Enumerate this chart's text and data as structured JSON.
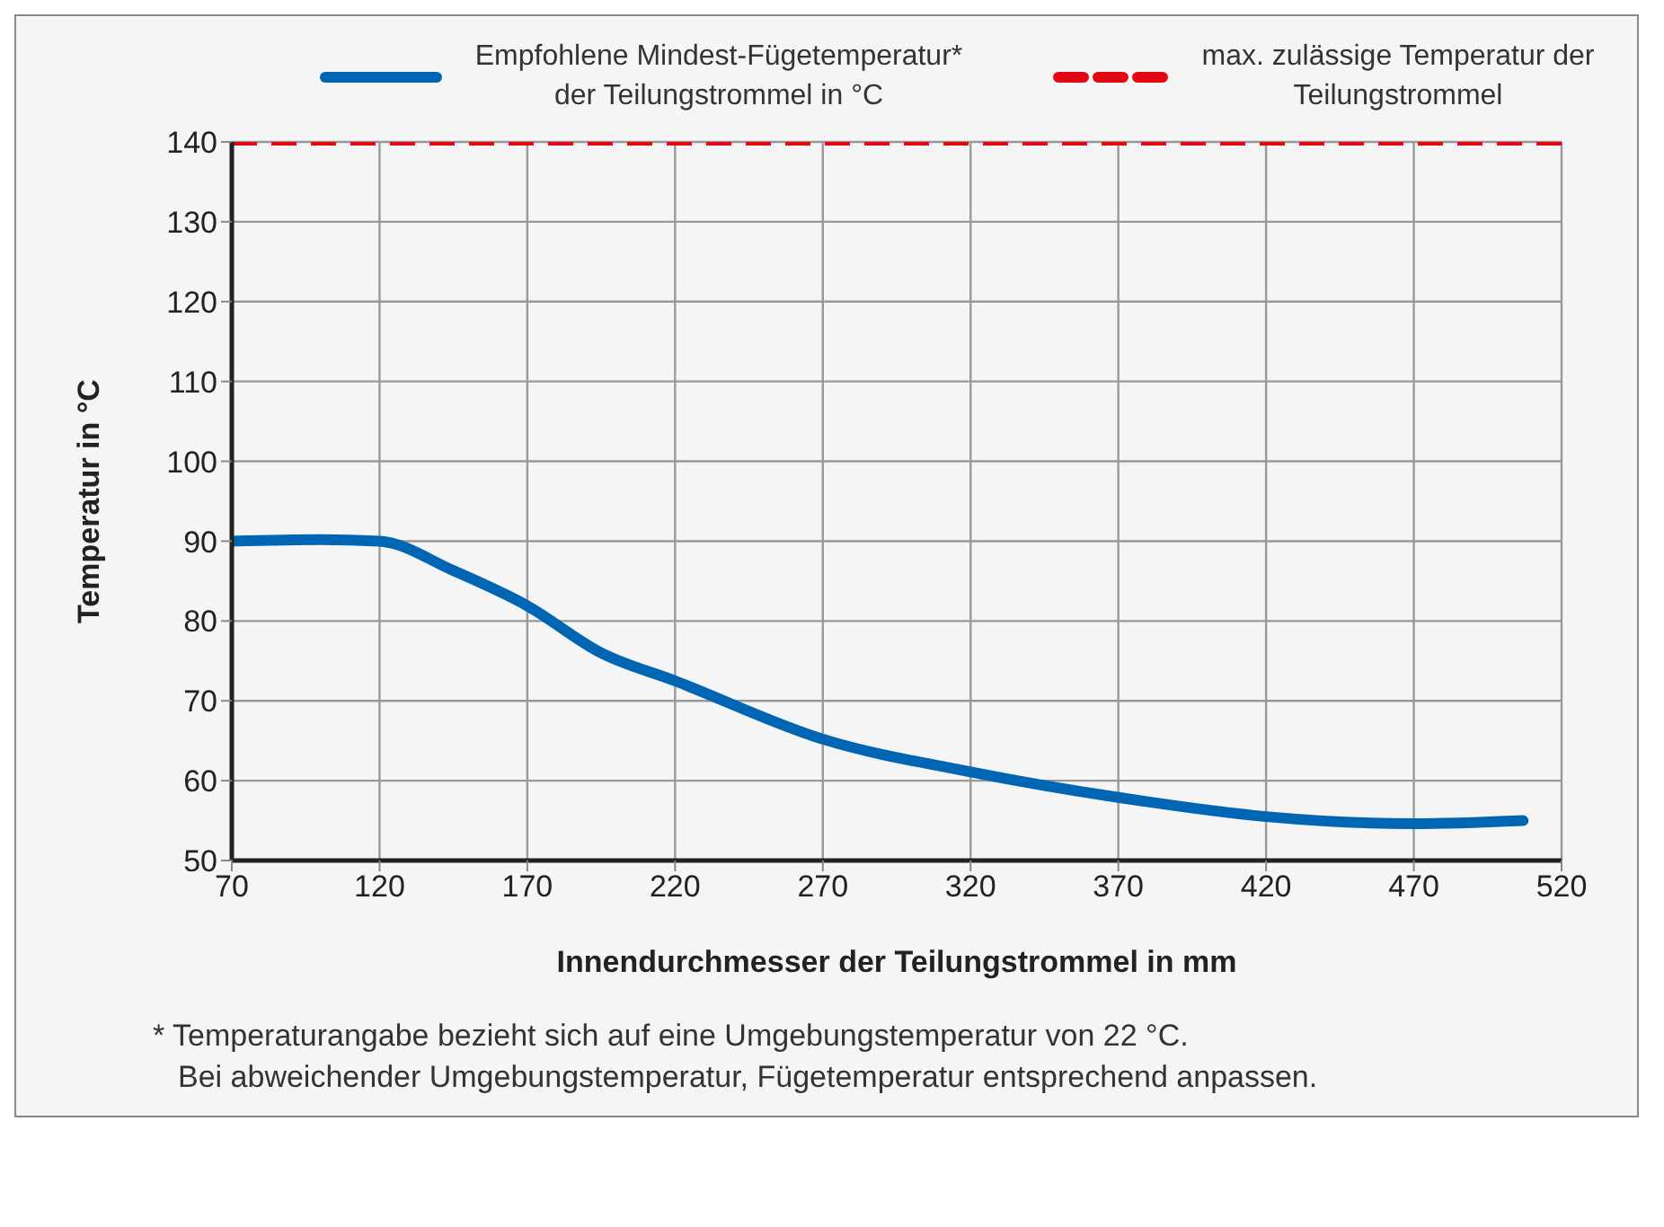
{
  "chart_data": {
    "type": "line",
    "xlabel": "Innendurchmesser der Teilungstrommel in mm",
    "ylabel": "Temperatur in °C",
    "xlim": [
      70,
      520
    ],
    "ylim": [
      50,
      140
    ],
    "xticks": [
      70,
      120,
      170,
      220,
      270,
      320,
      370,
      420,
      470,
      520
    ],
    "yticks": [
      50,
      60,
      70,
      80,
      90,
      100,
      110,
      120,
      130,
      140
    ],
    "grid": true,
    "legend": "top",
    "marker": "none",
    "series": [
      {
        "name": "Empfohlene Mindest-Fügetemperatur* der Teilungstrommel in °C",
        "color": "#0066b3",
        "line_style": "solid",
        "x": [
          70,
          100,
          120,
          145,
          170,
          195,
          220,
          270,
          320,
          370,
          420,
          470,
          507
        ],
        "values": [
          90,
          90.2,
          90,
          86.3,
          81.9,
          76,
          72.5,
          65.2,
          61.1,
          57.9,
          55.5,
          54.6,
          55
        ]
      },
      {
        "name": "max. zulässige Temperatur der Teilungstrommel",
        "color": "#e30613",
        "line_style": "dashed",
        "x": [
          70,
          520
        ],
        "values": [
          140,
          140
        ]
      }
    ],
    "annotations": [
      "* Temperaturangabe bezieht sich auf eine Umgebungstemperatur von 22 °C.",
      "Bei abweichender Umgebungstemperatur, Fügetemperatur entsprechend anpassen."
    ]
  }
}
